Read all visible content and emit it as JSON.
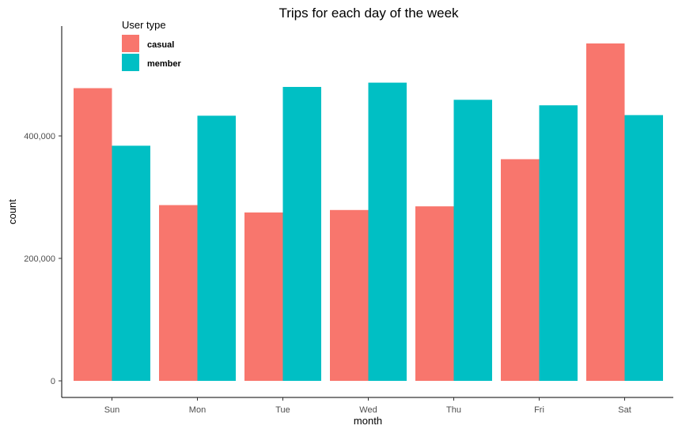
{
  "chart_data": {
    "type": "bar",
    "title": "Trips for each day of the week",
    "xlabel": "month",
    "ylabel": "count",
    "categories": [
      "Sun",
      "Mon",
      "Tue",
      "Wed",
      "Thu",
      "Fri",
      "Sat"
    ],
    "series": [
      {
        "name": "casual",
        "color": "#F8766D",
        "values": [
          478000,
          287000,
          275000,
          279000,
          285000,
          362000,
          551000
        ]
      },
      {
        "name": "member",
        "color": "#00BFC4",
        "values": [
          384000,
          433000,
          480000,
          487000,
          459000,
          450000,
          434000
        ]
      }
    ],
    "ylim": [
      0,
      575000
    ],
    "yticks": [
      0,
      200000,
      400000
    ],
    "ytick_labels": [
      "0",
      "200,000",
      "400,000"
    ],
    "grid": false,
    "legend": {
      "title": "User type",
      "position": "top-left"
    }
  }
}
